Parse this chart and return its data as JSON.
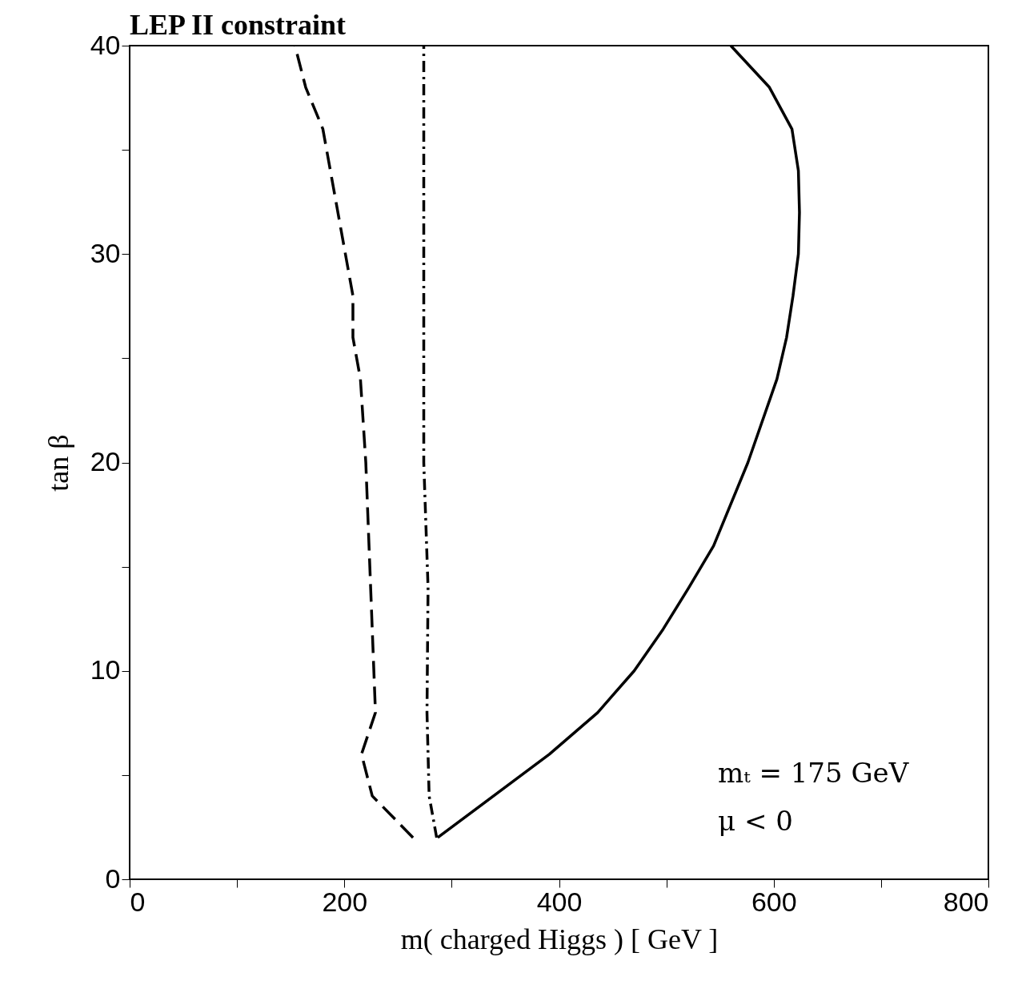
{
  "chart_data": {
    "type": "line",
    "title": "LEP II constraint",
    "xlabel": "m( charged Higgs )  [ GeV ]",
    "ylabel": "tan β",
    "annotations": [
      "mₜ = 175 GeV",
      "μ < 0"
    ],
    "xlim": [
      0,
      800
    ],
    "ylim": [
      0,
      40
    ],
    "xticks": [
      0,
      {
        "value": 100,
        "label": null
      },
      200,
      {
        "value": 300,
        "label": null
      },
      400,
      {
        "value": 500,
        "label": null
      },
      600,
      {
        "value": 700,
        "label": null
      },
      800
    ],
    "yticks": [
      0,
      {
        "value": 5,
        "label": null
      },
      10,
      {
        "value": 15,
        "label": null
      },
      20,
      {
        "value": 25,
        "label": null
      },
      30,
      {
        "value": 35,
        "label": null
      },
      40
    ],
    "grid": false,
    "marker": "none",
    "series": [
      {
        "color": "#000000",
        "line_style": "dashed",
        "x": [
          264,
          226,
          216,
          229,
          226,
          220,
          215,
          208,
          208,
          180,
          164,
          154
        ],
        "values": [
          2,
          4,
          6,
          8,
          12,
          20,
          24,
          26,
          28,
          36,
          38,
          40
        ]
      },
      {
        "color": "#000000",
        "line_style": "dashdot",
        "x": [
          286,
          279,
          277,
          278,
          274,
          274,
          274
        ],
        "values": [
          2,
          4,
          8,
          14,
          20,
          31,
          40
        ]
      },
      {
        "color": "#000000",
        "line_style": "solid",
        "x": [
          287,
          391,
          436,
          470,
          497,
          521,
          544,
          576,
          603,
          612,
          618,
          623,
          624,
          623,
          617,
          596,
          560
        ],
        "values": [
          2,
          6,
          8,
          10,
          12,
          14,
          16,
          20,
          24,
          26,
          28,
          30,
          32,
          34,
          36,
          38,
          40
        ]
      }
    ]
  }
}
